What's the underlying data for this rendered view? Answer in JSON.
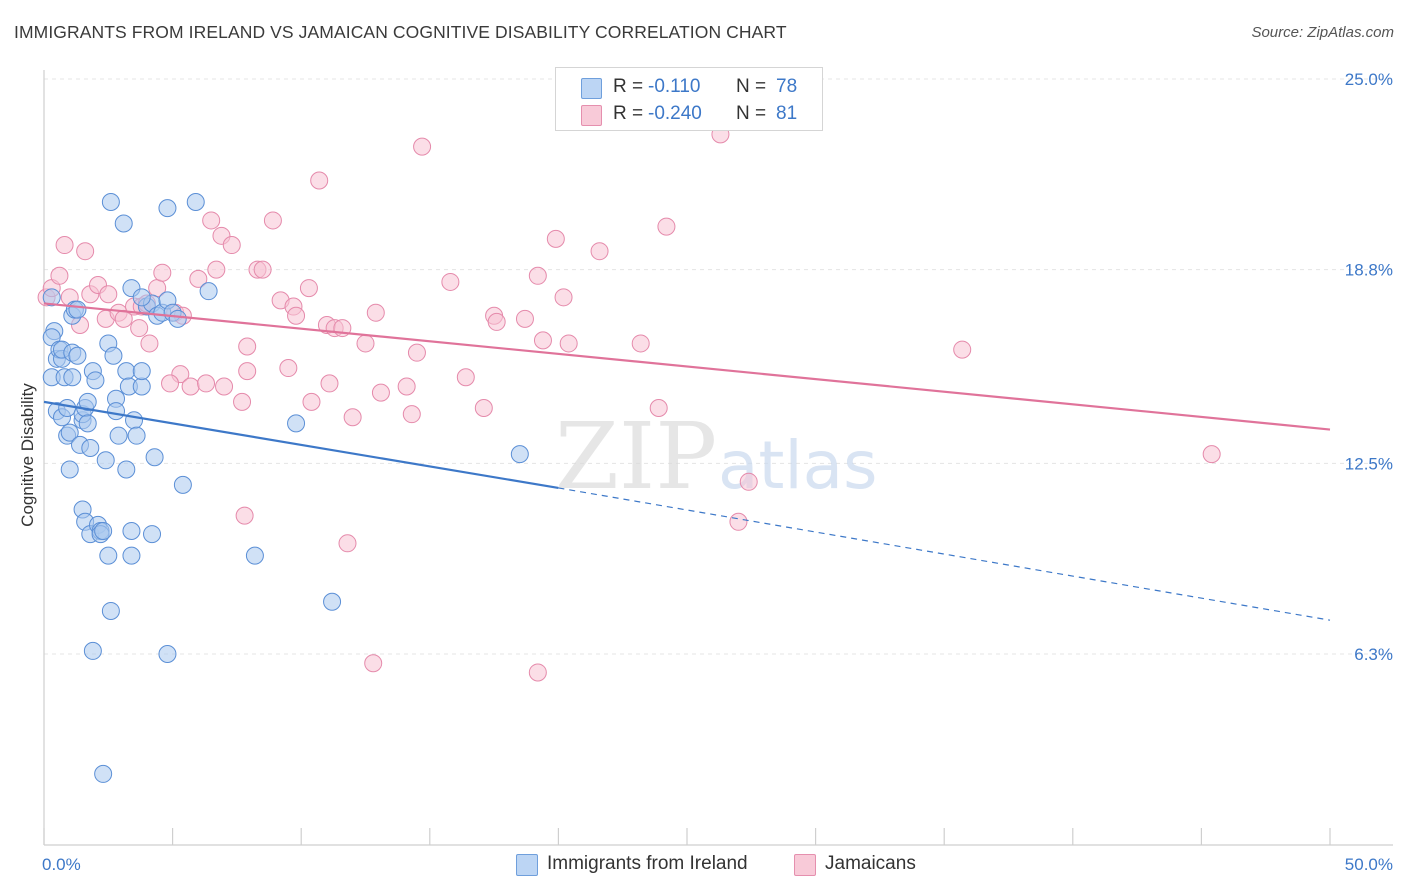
{
  "title": "IMMIGRANTS FROM IRELAND VS JAMAICAN COGNITIVE DISABILITY CORRELATION CHART",
  "source": "Source: ZipAtlas.com",
  "legend": {
    "rows": [
      {
        "r_label": "R =",
        "r_value": "-0.110",
        "n_label": "N =",
        "n_value": "78"
      },
      {
        "r_label": "R =",
        "r_value": "-0.240",
        "n_label": "N =",
        "n_value": "81"
      }
    ]
  },
  "bottom_legend": [
    "Immigrants from Ireland",
    "Jamaicans"
  ],
  "colors": {
    "blue": "#3d78c8",
    "blue_fill": "#a9c8ef",
    "pink": "#e0739a",
    "pink_fill": "#f5b6ca"
  },
  "chart_data": {
    "type": "scatter",
    "title": "IMMIGRANTS FROM IRELAND VS JAMAICAN COGNITIVE DISABILITY CORRELATION CHART",
    "xlabel": "",
    "ylabel": "Cognitive Disability",
    "xlim": [
      0,
      50
    ],
    "ylim": [
      0,
      26.3
    ],
    "x_tick_labels": [
      "0.0%",
      "50.0%"
    ],
    "y_ticks": [
      6.3,
      12.5,
      18.8,
      25.0
    ],
    "y_tick_labels": [
      "6.3%",
      "12.5%",
      "18.8%",
      "25.0%"
    ],
    "grid": true,
    "legend_position": "top-center",
    "series": [
      {
        "name": "Immigrants from Ireland",
        "color": "#3d78c8",
        "trend": {
          "x": [
            0,
            20
          ],
          "y": [
            14.5,
            11.7
          ],
          "dashed_to": {
            "x": 50,
            "y": 7.4
          }
        },
        "points": [
          [
            0.3,
            17.9
          ],
          [
            0.4,
            16.8
          ],
          [
            0.3,
            16.6
          ],
          [
            0.5,
            15.9
          ],
          [
            0.3,
            15.3
          ],
          [
            0.6,
            16.2
          ],
          [
            0.7,
            15.9
          ],
          [
            0.7,
            16.2
          ],
          [
            0.8,
            15.3
          ],
          [
            0.5,
            14.2
          ],
          [
            0.7,
            14.0
          ],
          [
            0.9,
            14.3
          ],
          [
            0.9,
            13.4
          ],
          [
            1.0,
            13.5
          ],
          [
            1.1,
            15.3
          ],
          [
            1.1,
            17.3
          ],
          [
            1.2,
            17.5
          ],
          [
            1.3,
            17.5
          ],
          [
            1.4,
            13.1
          ],
          [
            1.5,
            13.9
          ],
          [
            1.5,
            14.1
          ],
          [
            1.6,
            14.3
          ],
          [
            1.7,
            13.8
          ],
          [
            1.7,
            14.5
          ],
          [
            1.8,
            13.0
          ],
          [
            1.9,
            15.5
          ],
          [
            1.0,
            12.3
          ],
          [
            1.5,
            11.0
          ],
          [
            1.6,
            10.6
          ],
          [
            1.8,
            10.2
          ],
          [
            2.1,
            10.5
          ],
          [
            2.2,
            10.3
          ],
          [
            2.2,
            10.2
          ],
          [
            2.3,
            10.3
          ],
          [
            2.4,
            12.6
          ],
          [
            2.5,
            9.5
          ],
          [
            2.5,
            16.4
          ],
          [
            2.7,
            16.0
          ],
          [
            2.8,
            14.6
          ],
          [
            2.8,
            14.2
          ],
          [
            2.9,
            13.4
          ],
          [
            3.2,
            15.5
          ],
          [
            3.3,
            15.0
          ],
          [
            3.5,
            13.9
          ],
          [
            3.6,
            13.4
          ],
          [
            3.8,
            15.0
          ],
          [
            3.8,
            15.5
          ],
          [
            3.2,
            12.3
          ],
          [
            3.4,
            10.3
          ],
          [
            3.4,
            9.5
          ],
          [
            4.0,
            17.6
          ],
          [
            4.2,
            17.7
          ],
          [
            4.4,
            17.3
          ],
          [
            4.2,
            10.2
          ],
          [
            4.3,
            12.7
          ],
          [
            4.6,
            17.4
          ],
          [
            4.8,
            17.8
          ],
          [
            5.0,
            17.4
          ],
          [
            5.2,
            17.2
          ],
          [
            3.4,
            18.2
          ],
          [
            3.8,
            17.9
          ],
          [
            2.6,
            21.0
          ],
          [
            3.1,
            20.3
          ],
          [
            4.8,
            20.8
          ],
          [
            5.9,
            21.0
          ],
          [
            5.4,
            11.8
          ],
          [
            6.4,
            18.1
          ],
          [
            8.2,
            9.5
          ],
          [
            9.8,
            13.8
          ],
          [
            11.2,
            8.0
          ],
          [
            18.5,
            12.8
          ],
          [
            2.6,
            7.7
          ],
          [
            1.9,
            6.4
          ],
          [
            4.8,
            6.3
          ],
          [
            2.3,
            2.4
          ],
          [
            1.1,
            16.1
          ],
          [
            1.3,
            16.0
          ],
          [
            2.0,
            15.2
          ]
        ]
      },
      {
        "name": "Jamaicans",
        "color": "#e0739a",
        "trend": {
          "x": [
            0,
            50
          ],
          "y": [
            17.7,
            13.6
          ]
        },
        "points": [
          [
            0.1,
            17.9
          ],
          [
            0.3,
            18.2
          ],
          [
            0.6,
            18.6
          ],
          [
            0.8,
            19.6
          ],
          [
            1.0,
            17.9
          ],
          [
            1.6,
            19.4
          ],
          [
            1.8,
            18.0
          ],
          [
            2.1,
            18.3
          ],
          [
            2.5,
            18.0
          ],
          [
            2.4,
            17.2
          ],
          [
            2.9,
            17.4
          ],
          [
            3.1,
            17.2
          ],
          [
            3.5,
            17.6
          ],
          [
            3.8,
            17.6
          ],
          [
            4.0,
            17.7
          ],
          [
            3.7,
            16.9
          ],
          [
            4.1,
            16.4
          ],
          [
            4.4,
            18.2
          ],
          [
            4.6,
            18.7
          ],
          [
            5.1,
            17.4
          ],
          [
            5.3,
            15.4
          ],
          [
            4.9,
            15.1
          ],
          [
            5.4,
            17.3
          ],
          [
            5.7,
            15.0
          ],
          [
            6.0,
            18.5
          ],
          [
            6.3,
            15.1
          ],
          [
            6.5,
            20.4
          ],
          [
            6.7,
            18.8
          ],
          [
            6.9,
            19.9
          ],
          [
            7.0,
            15.0
          ],
          [
            7.3,
            19.6
          ],
          [
            7.7,
            14.5
          ],
          [
            7.9,
            16.3
          ],
          [
            8.3,
            18.8
          ],
          [
            8.5,
            18.8
          ],
          [
            8.9,
            20.4
          ],
          [
            9.2,
            17.8
          ],
          [
            9.5,
            15.6
          ],
          [
            9.7,
            17.6
          ],
          [
            9.8,
            17.3
          ],
          [
            10.3,
            18.2
          ],
          [
            10.4,
            14.5
          ],
          [
            10.7,
            21.7
          ],
          [
            11.0,
            17.0
          ],
          [
            11.1,
            15.1
          ],
          [
            11.3,
            16.9
          ],
          [
            11.6,
            16.9
          ],
          [
            12.0,
            14.0
          ],
          [
            12.5,
            16.4
          ],
          [
            12.9,
            17.4
          ],
          [
            13.1,
            14.8
          ],
          [
            14.1,
            15.0
          ],
          [
            14.3,
            14.1
          ],
          [
            14.5,
            16.1
          ],
          [
            14.7,
            22.8
          ],
          [
            15.8,
            18.4
          ],
          [
            16.4,
            15.3
          ],
          [
            17.1,
            14.3
          ],
          [
            17.5,
            17.3
          ],
          [
            17.6,
            17.1
          ],
          [
            18.7,
            17.2
          ],
          [
            19.2,
            18.6
          ],
          [
            19.4,
            16.5
          ],
          [
            19.9,
            19.8
          ],
          [
            20.2,
            17.9
          ],
          [
            20.4,
            16.4
          ],
          [
            21.6,
            19.4
          ],
          [
            23.2,
            16.4
          ],
          [
            23.9,
            14.3
          ],
          [
            24.2,
            20.2
          ],
          [
            26.3,
            23.2
          ],
          [
            27.0,
            10.6
          ],
          [
            27.4,
            11.9
          ],
          [
            35.7,
            16.2
          ],
          [
            45.4,
            12.8
          ],
          [
            7.8,
            10.8
          ],
          [
            11.8,
            9.9
          ],
          [
            12.8,
            6.0
          ],
          [
            19.2,
            5.7
          ],
          [
            7.9,
            15.5
          ],
          [
            1.4,
            17.0
          ]
        ]
      }
    ]
  }
}
